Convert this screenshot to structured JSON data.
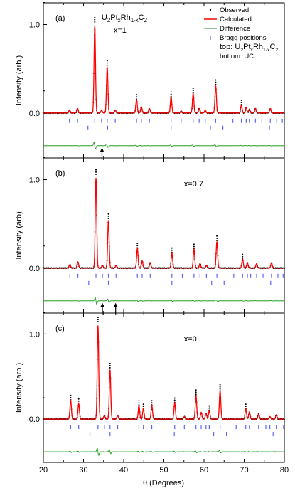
{
  "chart_data": {
    "type": "line",
    "xlabel": "θ (Degrees)",
    "xlim": [
      20,
      80
    ],
    "x_ticks": [
      "20",
      "30",
      "40",
      "50",
      "60",
      "70",
      "80"
    ],
    "y_ticks": [
      "0.0",
      "1.0"
    ],
    "colors": {
      "observed": "#000000",
      "calculated": "#ff0000",
      "difference": "#1a9a1a",
      "bragg": "#5b63ff",
      "arrow": "#000000"
    },
    "legend": {
      "observed": "Observed",
      "calculated": "Calculated",
      "difference": "Difference",
      "bragg": "Bragg positions",
      "top_text": "top: U",
      "top_sub1": "2",
      "top_mid1": "Pt",
      "top_sub2": "x",
      "top_mid2": "Rh",
      "top_sub3": "1-x",
      "top_mid3": "C",
      "top_sub4": "2",
      "bottom": "bottom: UC"
    },
    "compound": {
      "a": "U",
      "s1": "2",
      "b": "Pt",
      "s2": "x",
      "c": "Rh",
      "s3": "1-x",
      "d": "C",
      "s4": "2"
    },
    "panels": [
      {
        "label": "(a)",
        "ylabel": "Intensity (arb.)",
        "annotation": "x=1",
        "show_compound": true,
        "show_legend": true,
        "ymax": 1.25,
        "peaks": [
          [
            26.5,
            0.03
          ],
          [
            28.5,
            0.05
          ],
          [
            32.8,
            0.99
          ],
          [
            34.5,
            0.03
          ],
          [
            35.9,
            0.52
          ],
          [
            37.9,
            0.03
          ],
          [
            43.2,
            0.15
          ],
          [
            44.4,
            0.07
          ],
          [
            46.4,
            0.05
          ],
          [
            51.8,
            0.18
          ],
          [
            54.3,
            0.02
          ],
          [
            57.3,
            0.22
          ],
          [
            58.8,
            0.05
          ],
          [
            60.3,
            0.03
          ],
          [
            62.9,
            0.31
          ],
          [
            69.3,
            0.09
          ],
          [
            70.5,
            0.06
          ],
          [
            71.3,
            0.04
          ],
          [
            72.8,
            0.05
          ],
          [
            76.5,
            0.05
          ]
        ],
        "bragg_top": [
          26.5,
          28.5,
          32.8,
          34.5,
          35.9,
          37.9,
          43.2,
          44.4,
          46.4,
          51.8,
          54.3,
          57.3,
          58.8,
          60.3,
          62.9,
          67.2,
          69.3,
          70.5,
          71.3,
          72.8,
          74.4,
          76.5,
          78.1,
          79.5
        ],
        "bragg_bottom": [
          31.1,
          36.0,
          51.8,
          61.6,
          64.7,
          76.3
        ],
        "arrows": [
          34.6
        ]
      },
      {
        "label": "(b)",
        "ylabel": "Intensity (arb)",
        "annotation": "x=0.7",
        "show_compound": false,
        "show_legend": false,
        "ymax": 1.22,
        "peaks": [
          [
            26.6,
            0.04
          ],
          [
            28.6,
            0.07
          ],
          [
            33.1,
            1.02
          ],
          [
            34.7,
            0.03
          ],
          [
            36.2,
            0.54
          ],
          [
            38.1,
            0.03
          ],
          [
            43.4,
            0.22
          ],
          [
            44.6,
            0.08
          ],
          [
            46.6,
            0.06
          ],
          [
            52.0,
            0.17
          ],
          [
            57.5,
            0.21
          ],
          [
            59.0,
            0.05
          ],
          [
            60.6,
            0.03
          ],
          [
            63.2,
            0.3
          ],
          [
            69.6,
            0.1
          ],
          [
            70.8,
            0.06
          ],
          [
            73.1,
            0.05
          ],
          [
            76.8,
            0.06
          ]
        ],
        "bragg_top": [
          26.6,
          28.6,
          33.1,
          34.7,
          36.2,
          38.1,
          43.4,
          44.6,
          46.6,
          52.0,
          54.6,
          57.5,
          59.0,
          60.6,
          63.2,
          67.4,
          69.6,
          70.8,
          71.6,
          73.1,
          74.7,
          76.8,
          78.4,
          79.7
        ],
        "bragg_bottom": [
          31.3,
          36.2,
          52.0,
          61.9,
          65.0,
          76.6
        ],
        "arrows": [
          34.7,
          38.0
        ]
      },
      {
        "label": "(c)",
        "ylabel": "Intensity (arb.)",
        "annotation": "x=0",
        "show_compound": false,
        "show_legend": false,
        "ymax": 1.22,
        "peaks": [
          [
            26.8,
            0.22
          ],
          [
            28.8,
            0.18
          ],
          [
            33.6,
            1.1
          ],
          [
            35.2,
            0.04
          ],
          [
            36.6,
            0.58
          ],
          [
            38.5,
            0.04
          ],
          [
            43.8,
            0.16
          ],
          [
            44.9,
            0.12
          ],
          [
            47.0,
            0.16
          ],
          [
            52.7,
            0.19
          ],
          [
            55.1,
            0.03
          ],
          [
            58.0,
            0.28
          ],
          [
            59.3,
            0.08
          ],
          [
            60.5,
            0.07
          ],
          [
            61.3,
            0.1
          ],
          [
            64.0,
            0.34
          ],
          [
            70.4,
            0.12
          ],
          [
            71.3,
            0.08
          ],
          [
            73.6,
            0.06
          ],
          [
            76.4,
            0.03
          ],
          [
            78.0,
            0.05
          ]
        ],
        "bragg_top": [
          26.8,
          28.8,
          33.6,
          35.2,
          36.6,
          38.5,
          43.8,
          44.9,
          47.0,
          52.7,
          55.1,
          58.0,
          59.3,
          60.5,
          61.3,
          64.0,
          68.0,
          70.4,
          71.3,
          73.6,
          75.4,
          76.4,
          78.0,
          79.8
        ],
        "bragg_bottom": [
          31.6,
          36.6,
          52.6,
          62.4,
          65.6,
          77.2
        ],
        "arrows": []
      }
    ]
  }
}
